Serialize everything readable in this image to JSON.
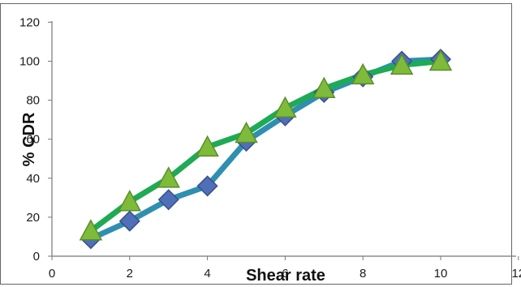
{
  "chart_data": {
    "type": "line",
    "xlabel": "Shear rate",
    "ylabel": "% CDR",
    "xlim": [
      0,
      12
    ],
    "ylim": [
      0,
      120
    ],
    "xticks": [
      0,
      2,
      4,
      6,
      8,
      10,
      12
    ],
    "yticks": [
      0,
      20,
      40,
      60,
      80,
      100,
      120
    ],
    "x_tick_labels": [
      "0",
      "2",
      "4",
      "6",
      "8",
      "10",
      "12"
    ],
    "y_tick_labels": [
      "0",
      "20",
      "40",
      "60",
      "80",
      "100",
      "120"
    ],
    "grid": false,
    "legend": "none",
    "x": [
      1,
      2,
      3,
      4,
      5,
      6,
      7,
      8,
      9,
      10
    ],
    "series": [
      {
        "marker": "diamond",
        "line_color": "#2f8fb0",
        "marker_color": "#4f6fb8",
        "values": [
          9,
          18,
          29,
          36,
          59,
          72,
          84,
          92,
          100,
          101
        ]
      },
      {
        "marker": "triangle",
        "line_color": "#1faa55",
        "marker_color": "#7ebb3a",
        "values": [
          13,
          28,
          40,
          56,
          63,
          76,
          86,
          93,
          98,
          100
        ]
      }
    ]
  }
}
